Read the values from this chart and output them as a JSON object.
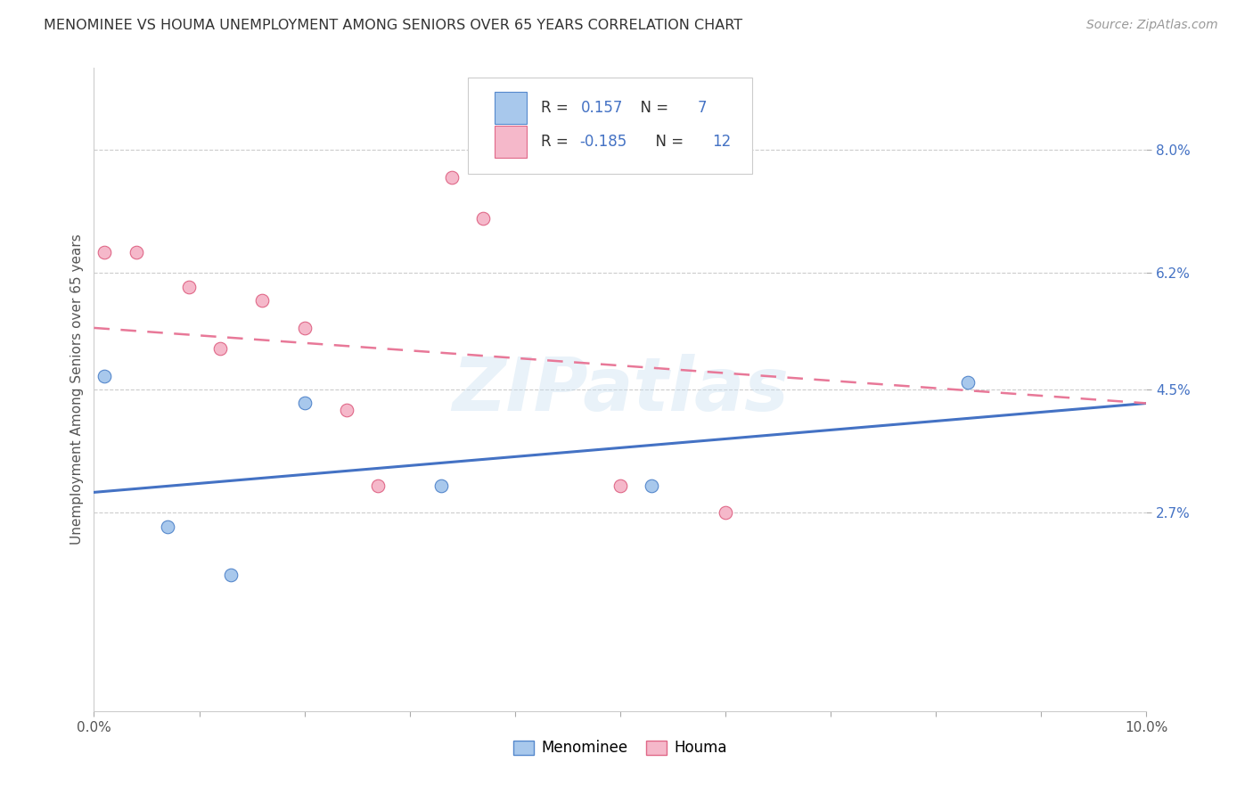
{
  "title": "MENOMINEE VS HOUMA UNEMPLOYMENT AMONG SENIORS OVER 65 YEARS CORRELATION CHART",
  "source": "Source: ZipAtlas.com",
  "ylabel": "Unemployment Among Seniors over 65 years",
  "xlim": [
    0.0,
    0.1
  ],
  "ylim": [
    -0.002,
    0.092
  ],
  "xtick_vals": [
    0.0,
    0.01,
    0.02,
    0.03,
    0.04,
    0.05,
    0.06,
    0.07,
    0.08,
    0.09,
    0.1
  ],
  "xtick_labels": [
    "0.0%",
    "",
    "",
    "",
    "",
    "",
    "",
    "",
    "",
    "",
    "10.0%"
  ],
  "ytick_vals": [
    0.027,
    0.045,
    0.062,
    0.08
  ],
  "ytick_labels": [
    "2.7%",
    "4.5%",
    "6.2%",
    "8.0%"
  ],
  "menominee_x": [
    0.001,
    0.007,
    0.013,
    0.02,
    0.033,
    0.053,
    0.083
  ],
  "menominee_y": [
    0.047,
    0.025,
    0.018,
    0.043,
    0.031,
    0.031,
    0.046
  ],
  "houma_x": [
    0.001,
    0.004,
    0.009,
    0.012,
    0.016,
    0.02,
    0.024,
    0.027,
    0.034,
    0.037,
    0.05,
    0.06
  ],
  "houma_y": [
    0.065,
    0.065,
    0.06,
    0.051,
    0.058,
    0.054,
    0.042,
    0.031,
    0.076,
    0.07,
    0.031,
    0.027
  ],
  "menominee_color": "#a8c8ec",
  "houma_color": "#f5b8ca",
  "menominee_edge": "#5588cc",
  "houma_edge": "#e06888",
  "blue_line_color": "#4472c4",
  "pink_line_color": "#e87898",
  "legend_label1": "Menominee",
  "legend_label2": "Houma",
  "watermark": "ZIPatlas",
  "bg_color": "#ffffff",
  "scatter_size": 110
}
